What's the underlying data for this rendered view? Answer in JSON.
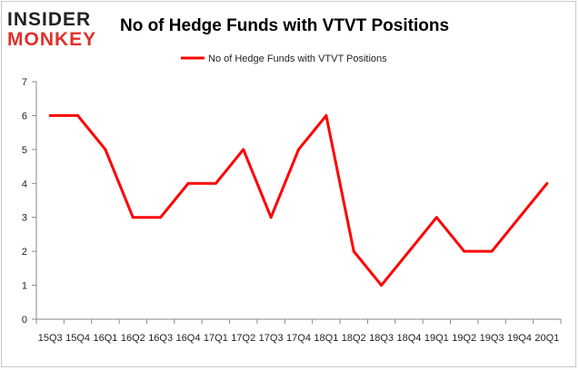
{
  "logo": {
    "line1": "INSIDER",
    "line2": "MONKEY",
    "color_line1": "#222222",
    "color_line2": "#e0302a"
  },
  "chart_data": {
    "type": "line",
    "title": "No of Hedge Funds with VTVT Positions",
    "xlabel": "",
    "ylabel": "",
    "categories": [
      "15Q3",
      "15Q4",
      "16Q1",
      "16Q2",
      "16Q3",
      "16Q4",
      "17Q1",
      "17Q2",
      "17Q3",
      "17Q4",
      "18Q1",
      "18Q2",
      "18Q3",
      "18Q4",
      "19Q1",
      "19Q2",
      "19Q3",
      "19Q4",
      "20Q1"
    ],
    "series": [
      {
        "name": "No of Hedge Funds with VTVT  Positions",
        "color": "#ff0000",
        "values": [
          6,
          6,
          5,
          3,
          3,
          4,
          4,
          5,
          3,
          5,
          6,
          2,
          1,
          2,
          3,
          2,
          2,
          3,
          4
        ]
      }
    ],
    "ylim": [
      0,
      7
    ],
    "yticks": [
      "0",
      "1",
      "2",
      "3",
      "4",
      "5",
      "6",
      "7"
    ],
    "grid": false,
    "legend_position": "top-center"
  }
}
